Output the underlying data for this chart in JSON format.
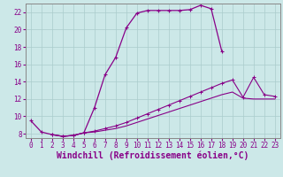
{
  "xlabel": "Windchill (Refroidissement éolien,°C)",
  "background_color": "#cce8e8",
  "line_color": "#880088",
  "xlim": [
    -0.5,
    23.5
  ],
  "ylim": [
    7.5,
    23.0
  ],
  "yticks": [
    8,
    10,
    12,
    14,
    16,
    18,
    20,
    22
  ],
  "xticks": [
    0,
    1,
    2,
    3,
    4,
    5,
    6,
    7,
    8,
    9,
    10,
    11,
    12,
    13,
    14,
    15,
    16,
    17,
    18,
    19,
    20,
    21,
    22,
    23
  ],
  "series1_x": [
    0,
    1,
    2,
    3,
    4,
    5,
    6,
    7,
    8,
    9,
    10,
    11,
    12,
    13,
    14,
    15,
    16,
    17,
    18
  ],
  "series1_y": [
    9.5,
    8.2,
    7.9,
    7.7,
    7.8,
    8.1,
    11.0,
    14.8,
    16.8,
    20.2,
    21.9,
    22.2,
    22.2,
    22.2,
    22.2,
    22.3,
    22.8,
    22.4,
    17.5
  ],
  "series2_x": [
    2,
    3,
    4,
    5,
    6,
    7,
    8,
    9,
    10,
    11,
    12,
    13,
    14,
    15,
    16,
    17,
    18,
    19,
    20,
    21,
    22,
    23
  ],
  "series2_y": [
    7.9,
    7.7,
    7.8,
    8.1,
    8.3,
    8.6,
    8.9,
    9.3,
    9.8,
    10.3,
    10.8,
    11.3,
    11.8,
    12.3,
    12.8,
    13.3,
    13.8,
    14.2,
    12.2,
    14.5,
    12.5,
    12.3
  ],
  "series3_x": [
    2,
    3,
    4,
    5,
    6,
    7,
    8,
    9,
    10,
    11,
    12,
    13,
    14,
    15,
    16,
    17,
    18,
    19,
    20,
    21,
    22,
    23
  ],
  "series3_y": [
    7.9,
    7.7,
    7.8,
    8.1,
    8.2,
    8.4,
    8.6,
    8.9,
    9.3,
    9.7,
    10.1,
    10.5,
    10.9,
    11.3,
    11.7,
    12.1,
    12.5,
    12.8,
    12.1,
    12.0,
    12.0,
    12.0
  ],
  "grid_color": "#aacccc",
  "tick_label_fontsize": 5.5,
  "xlabel_fontsize": 7.0
}
